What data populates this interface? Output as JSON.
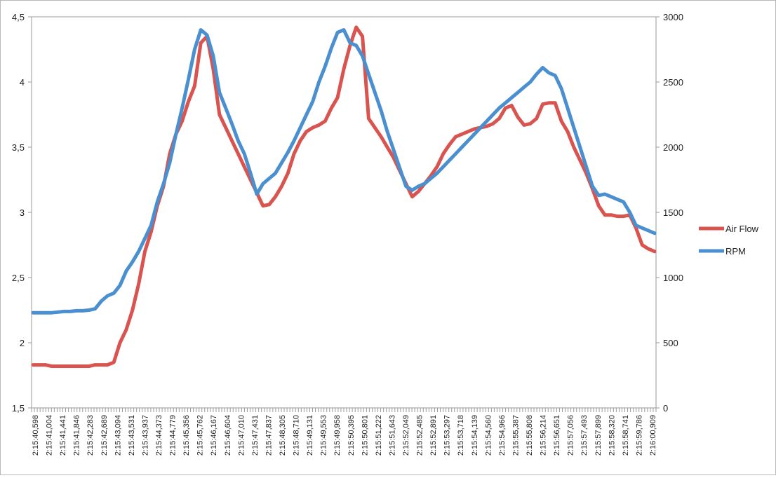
{
  "chart_data": {
    "type": "line",
    "title": "",
    "xlabel": "",
    "ylabel": "",
    "y2label": "",
    "legend_position": "right",
    "grid": {
      "x": false,
      "y": false
    },
    "x_tick_labels": [
      "2:15:40,598",
      "2:15:41,004",
      "2:15:41,441",
      "2:15:41,846",
      "2:15:42,283",
      "2:15:42,689",
      "2:15:43,094",
      "2:15:43,531",
      "2:15:43,937",
      "2:15:44,373",
      "2:15:44,779",
      "2:15:45,356",
      "2:15:45,762",
      "2:15:46,167",
      "2:15:46,604",
      "2:15:47,010",
      "2:15:47,431",
      "2:15:47,837",
      "2:15:48,305",
      "2:15:48,710",
      "2:15:49,131",
      "2:15:49,553",
      "2:15:49,958",
      "2:15:50,395",
      "2:15:50,801",
      "2:15:51,222",
      "2:15:51,643",
      "2:15:52,049",
      "2:15:52,485",
      "2:15:52,891",
      "2:15:53,297",
      "2:15:53,718",
      "2:15:54,139",
      "2:15:54,560",
      "2:15:54,966",
      "2:15:55,387",
      "2:15:55,808",
      "2:15:56,214",
      "2:15:56,651",
      "2:15:57,056",
      "2:15:57,493",
      "2:15:57,899",
      "2:15:58,320",
      "2:15:58,741",
      "2:15:59,786",
      "2:16:00,909"
    ],
    "y_axis_left": {
      "min": 1.5,
      "max": 4.5,
      "ticks": [
        "1,5",
        "2",
        "2,5",
        "3",
        "3,5",
        "4",
        "4,5"
      ]
    },
    "y_axis_right": {
      "min": 0,
      "max": 3000,
      "ticks": [
        "0",
        "500",
        "1000",
        "1500",
        "2000",
        "2500",
        "3000"
      ]
    },
    "series": [
      {
        "name": "Air Flow",
        "axis": "left",
        "color": "#d9534f",
        "points": [
          [
            0,
            1.83
          ],
          [
            1,
            1.83
          ],
          [
            2,
            1.83
          ],
          [
            3,
            1.82
          ],
          [
            4,
            1.82
          ],
          [
            5,
            1.82
          ],
          [
            6,
            1.82
          ],
          [
            7,
            1.82
          ],
          [
            8,
            1.82
          ],
          [
            9,
            1.82
          ],
          [
            10,
            1.83
          ],
          [
            11,
            1.83
          ],
          [
            12,
            1.83
          ],
          [
            13,
            1.85
          ],
          [
            14,
            2.0
          ],
          [
            15,
            2.1
          ],
          [
            16,
            2.25
          ],
          [
            17,
            2.45
          ],
          [
            18,
            2.7
          ],
          [
            19,
            2.85
          ],
          [
            20,
            3.05
          ],
          [
            21,
            3.2
          ],
          [
            22,
            3.45
          ],
          [
            23,
            3.6
          ],
          [
            24,
            3.7
          ],
          [
            25,
            3.85
          ],
          [
            26,
            3.97
          ],
          [
            27,
            4.3
          ],
          [
            28,
            4.35
          ],
          [
            29,
            4.1
          ],
          [
            30,
            3.75
          ],
          [
            31,
            3.65
          ],
          [
            32,
            3.55
          ],
          [
            33,
            3.45
          ],
          [
            34,
            3.35
          ],
          [
            35,
            3.25
          ],
          [
            36,
            3.15
          ],
          [
            37,
            3.05
          ],
          [
            38,
            3.06
          ],
          [
            39,
            3.12
          ],
          [
            40,
            3.2
          ],
          [
            41,
            3.3
          ],
          [
            42,
            3.45
          ],
          [
            43,
            3.55
          ],
          [
            44,
            3.62
          ],
          [
            45,
            3.65
          ],
          [
            46,
            3.67
          ],
          [
            47,
            3.7
          ],
          [
            48,
            3.8
          ],
          [
            49,
            3.88
          ],
          [
            50,
            4.1
          ],
          [
            51,
            4.28
          ],
          [
            52,
            4.42
          ],
          [
            53,
            4.35
          ],
          [
            54,
            3.72
          ],
          [
            55,
            3.65
          ],
          [
            56,
            3.58
          ],
          [
            57,
            3.5
          ],
          [
            58,
            3.42
          ],
          [
            59,
            3.32
          ],
          [
            60,
            3.22
          ],
          [
            61,
            3.12
          ],
          [
            62,
            3.16
          ],
          [
            63,
            3.22
          ],
          [
            64,
            3.28
          ],
          [
            65,
            3.35
          ],
          [
            66,
            3.45
          ],
          [
            67,
            3.52
          ],
          [
            68,
            3.58
          ],
          [
            69,
            3.6
          ],
          [
            70,
            3.62
          ],
          [
            71,
            3.64
          ],
          [
            72,
            3.65
          ],
          [
            73,
            3.66
          ],
          [
            74,
            3.68
          ],
          [
            75,
            3.72
          ],
          [
            76,
            3.8
          ],
          [
            77,
            3.82
          ],
          [
            78,
            3.73
          ],
          [
            79,
            3.67
          ],
          [
            80,
            3.68
          ],
          [
            81,
            3.72
          ],
          [
            82,
            3.83
          ],
          [
            83,
            3.84
          ],
          [
            84,
            3.84
          ],
          [
            85,
            3.7
          ],
          [
            86,
            3.62
          ],
          [
            87,
            3.5
          ],
          [
            88,
            3.4
          ],
          [
            89,
            3.3
          ],
          [
            90,
            3.18
          ],
          [
            91,
            3.05
          ],
          [
            92,
            2.98
          ],
          [
            93,
            2.98
          ],
          [
            94,
            2.97
          ],
          [
            95,
            2.97
          ],
          [
            96,
            2.98
          ],
          [
            97,
            2.88
          ],
          [
            98,
            2.75
          ],
          [
            99,
            2.72
          ],
          [
            100,
            2.7
          ]
        ]
      },
      {
        "name": "RPM",
        "axis": "right",
        "color": "#4a8fd0",
        "points": [
          [
            0,
            730
          ],
          [
            1,
            730
          ],
          [
            2,
            730
          ],
          [
            3,
            730
          ],
          [
            4,
            735
          ],
          [
            5,
            740
          ],
          [
            6,
            740
          ],
          [
            7,
            745
          ],
          [
            8,
            745
          ],
          [
            9,
            750
          ],
          [
            10,
            760
          ],
          [
            11,
            820
          ],
          [
            12,
            860
          ],
          [
            13,
            880
          ],
          [
            14,
            940
          ],
          [
            15,
            1050
          ],
          [
            16,
            1120
          ],
          [
            17,
            1200
          ],
          [
            18,
            1300
          ],
          [
            19,
            1400
          ],
          [
            20,
            1580
          ],
          [
            21,
            1720
          ],
          [
            22,
            1880
          ],
          [
            23,
            2100
          ],
          [
            24,
            2300
          ],
          [
            25,
            2520
          ],
          [
            26,
            2750
          ],
          [
            27,
            2900
          ],
          [
            28,
            2860
          ],
          [
            29,
            2700
          ],
          [
            30,
            2420
          ],
          [
            31,
            2300
          ],
          [
            32,
            2180
          ],
          [
            33,
            2050
          ],
          [
            34,
            1950
          ],
          [
            35,
            1800
          ],
          [
            36,
            1640
          ],
          [
            37,
            1720
          ],
          [
            38,
            1760
          ],
          [
            39,
            1800
          ],
          [
            40,
            1880
          ],
          [
            41,
            1960
          ],
          [
            42,
            2050
          ],
          [
            43,
            2150
          ],
          [
            44,
            2250
          ],
          [
            45,
            2350
          ],
          [
            46,
            2500
          ],
          [
            47,
            2620
          ],
          [
            48,
            2760
          ],
          [
            49,
            2880
          ],
          [
            50,
            2900
          ],
          [
            51,
            2800
          ],
          [
            52,
            2780
          ],
          [
            53,
            2700
          ],
          [
            54,
            2560
          ],
          [
            55,
            2420
          ],
          [
            56,
            2280
          ],
          [
            57,
            2120
          ],
          [
            58,
            1980
          ],
          [
            59,
            1840
          ],
          [
            60,
            1700
          ],
          [
            61,
            1670
          ],
          [
            62,
            1700
          ],
          [
            63,
            1720
          ],
          [
            64,
            1760
          ],
          [
            65,
            1800
          ],
          [
            66,
            1850
          ],
          [
            67,
            1900
          ],
          [
            68,
            1950
          ],
          [
            69,
            2000
          ],
          [
            70,
            2050
          ],
          [
            71,
            2100
          ],
          [
            72,
            2150
          ],
          [
            73,
            2200
          ],
          [
            74,
            2250
          ],
          [
            75,
            2300
          ],
          [
            76,
            2340
          ],
          [
            77,
            2380
          ],
          [
            78,
            2420
          ],
          [
            79,
            2460
          ],
          [
            80,
            2500
          ],
          [
            81,
            2560
          ],
          [
            82,
            2610
          ],
          [
            83,
            2570
          ],
          [
            84,
            2550
          ],
          [
            85,
            2450
          ],
          [
            86,
            2300
          ],
          [
            87,
            2150
          ],
          [
            88,
            2000
          ],
          [
            89,
            1850
          ],
          [
            90,
            1700
          ],
          [
            91,
            1630
          ],
          [
            92,
            1640
          ],
          [
            93,
            1620
          ],
          [
            94,
            1600
          ],
          [
            95,
            1580
          ],
          [
            96,
            1500
          ],
          [
            97,
            1400
          ],
          [
            98,
            1380
          ],
          [
            99,
            1360
          ],
          [
            100,
            1340
          ]
        ]
      }
    ]
  }
}
